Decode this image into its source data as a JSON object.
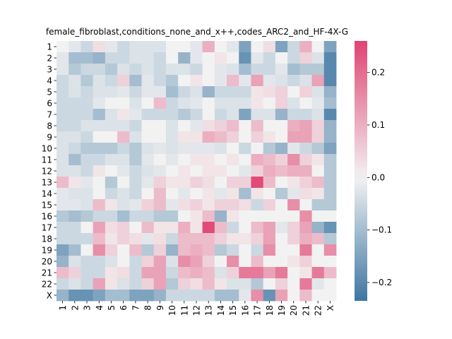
{
  "chart_data": {
    "type": "heatmap",
    "title": "female_fibroblast,conditions_none_and_x++,codes_ARC2_and_HF-4X-G",
    "xlabel": "",
    "ylabel": "",
    "row_labels": [
      "1",
      "2",
      "3",
      "4",
      "5",
      "6",
      "7",
      "8",
      "9",
      "10",
      "11",
      "12",
      "13",
      "14",
      "15",
      "16",
      "17",
      "18",
      "19",
      "20",
      "21",
      "22",
      "X"
    ],
    "col_labels": [
      "1",
      "2",
      "3",
      "4",
      "5",
      "6",
      "7",
      "8",
      "9",
      "10",
      "11",
      "12",
      "13",
      "14",
      "15",
      "16",
      "17",
      "18",
      "19",
      "20",
      "21",
      "22",
      "X"
    ],
    "colorbar": {
      "vmin": -0.235,
      "vmax": 0.26,
      "ticks": [
        -0.2,
        -0.1,
        0.0,
        0.1,
        0.2
      ],
      "tick_labels": [
        "−0.2",
        "−0.1",
        "0.0",
        "0.1",
        "0.2"
      ],
      "colormap": "diverging blue-white-pink",
      "color_low": "#3d76a1",
      "color_mid": "#f2f2f2",
      "color_high": "#df4473"
    },
    "values": [
      [
        0.0,
        -0.02,
        -0.05,
        0.03,
        -0.02,
        -0.05,
        -0.03,
        -0.03,
        -0.03,
        0.0,
        0.0,
        -0.02,
        0.1,
        0.0,
        -0.02,
        -0.15,
        0.0,
        0.03,
        -0.15,
        -0.05,
        0.1,
        0.0,
        -0.15
      ],
      [
        -0.02,
        -0.1,
        -0.1,
        -0.12,
        -0.05,
        -0.05,
        -0.03,
        -0.03,
        -0.05,
        0.0,
        -0.12,
        -0.02,
        0.0,
        0.02,
        0.0,
        -0.18,
        -0.02,
        -0.05,
        0.0,
        -0.05,
        0.05,
        -0.03,
        -0.2
      ],
      [
        -0.02,
        -0.08,
        -0.05,
        -0.05,
        -0.08,
        -0.03,
        -0.05,
        -0.03,
        -0.05,
        -0.03,
        -0.03,
        -0.05,
        0.0,
        -0.02,
        -0.03,
        -0.1,
        -0.05,
        -0.05,
        -0.02,
        -0.1,
        -0.08,
        -0.08,
        -0.2
      ],
      [
        -0.05,
        -0.03,
        -0.08,
        -0.03,
        -0.05,
        0.05,
        -0.1,
        -0.02,
        -0.05,
        -0.08,
        0.0,
        0.02,
        0.0,
        -0.02,
        0.08,
        -0.02,
        0.12,
        -0.02,
        -0.03,
        -0.05,
        -0.03,
        0.12,
        -0.2
      ],
      [
        -0.05,
        -0.03,
        -0.05,
        -0.03,
        -0.03,
        -0.02,
        -0.05,
        -0.02,
        -0.02,
        -0.1,
        -0.05,
        -0.03,
        -0.12,
        -0.05,
        -0.05,
        -0.05,
        0.02,
        0.03,
        0.05,
        0.0,
        0.05,
        -0.03,
        -0.12
      ],
      [
        -0.05,
        -0.05,
        -0.05,
        -0.02,
        0.0,
        0.0,
        -0.03,
        0.0,
        0.08,
        -0.05,
        -0.03,
        -0.02,
        0.0,
        -0.03,
        -0.03,
        -0.03,
        0.02,
        0.0,
        0.05,
        -0.03,
        0.0,
        -0.02,
        -0.1
      ],
      [
        -0.05,
        -0.05,
        -0.05,
        -0.1,
        -0.03,
        0.02,
        -0.02,
        -0.05,
        -0.05,
        -0.05,
        -0.08,
        -0.05,
        0.0,
        -0.05,
        -0.03,
        -0.15,
        -0.03,
        -0.03,
        -0.12,
        -0.05,
        -0.05,
        -0.03,
        -0.2
      ],
      [
        -0.05,
        -0.05,
        -0.03,
        -0.03,
        -0.03,
        -0.03,
        -0.05,
        0.0,
        0.0,
        -0.03,
        0.0,
        -0.02,
        0.03,
        0.05,
        0.08,
        0.0,
        0.08,
        0.0,
        0.0,
        0.1,
        0.12,
        0.05,
        -0.12
      ],
      [
        -0.03,
        -0.03,
        -0.05,
        0.0,
        0.0,
        0.08,
        -0.03,
        0.0,
        0.0,
        -0.03,
        0.02,
        0.02,
        0.1,
        0.08,
        0.05,
        0.0,
        0.05,
        0.02,
        0.0,
        0.12,
        0.12,
        0.05,
        -0.12
      ],
      [
        -0.03,
        -0.05,
        -0.08,
        -0.08,
        -0.08,
        -0.05,
        -0.08,
        -0.03,
        -0.02,
        -0.03,
        -0.02,
        -0.02,
        -0.02,
        -0.03,
        0.0,
        -0.05,
        0.0,
        -0.08,
        -0.12,
        -0.02,
        -0.05,
        -0.08,
        -0.15
      ],
      [
        -0.03,
        -0.1,
        -0.05,
        -0.05,
        -0.03,
        -0.03,
        -0.08,
        -0.02,
        0.0,
        -0.02,
        0.0,
        0.02,
        0.02,
        0.0,
        0.02,
        0.0,
        0.1,
        0.08,
        0.05,
        0.15,
        0.05,
        0.02,
        -0.08
      ],
      [
        -0.03,
        -0.03,
        -0.05,
        0.02,
        0.0,
        -0.02,
        -0.05,
        -0.03,
        -0.02,
        0.0,
        0.02,
        0.0,
        0.02,
        0.02,
        0.0,
        -0.02,
        0.05,
        0.1,
        0.08,
        0.1,
        0.1,
        0.0,
        -0.08
      ],
      [
        0.08,
        0.02,
        -0.02,
        0.0,
        -0.08,
        0.0,
        -0.05,
        -0.02,
        0.05,
        0.02,
        0.02,
        0.05,
        0.03,
        0.0,
        0.05,
        0.05,
        0.25,
        0.08,
        0.0,
        0.02,
        0.05,
        0.08,
        -0.08
      ],
      [
        -0.02,
        -0.03,
        -0.03,
        0.0,
        -0.05,
        -0.03,
        -0.05,
        0.0,
        0.08,
        0.0,
        -0.02,
        0.0,
        0.02,
        -0.02,
        0.02,
        -0.1,
        0.02,
        0.0,
        -0.08,
        -0.02,
        0.03,
        0.02,
        -0.08
      ],
      [
        -0.02,
        -0.02,
        -0.03,
        0.08,
        0.02,
        -0.03,
        -0.02,
        0.05,
        0.08,
        -0.02,
        0.03,
        0.05,
        0.02,
        0.05,
        0.05,
        0.03,
        -0.05,
        0.05,
        0.0,
        0.15,
        0.0,
        -0.08,
        -0.08
      ],
      [
        -0.08,
        -0.1,
        -0.08,
        -0.05,
        -0.05,
        -0.1,
        -0.05,
        -0.05,
        -0.08,
        -0.08,
        0.0,
        0.02,
        0.08,
        -0.12,
        0.02,
        0.0,
        0.0,
        0.0,
        0.0,
        0.0,
        0.15,
        0.0,
        0.0
      ],
      [
        -0.05,
        -0.05,
        0.0,
        0.12,
        0.03,
        0.05,
        0.0,
        0.08,
        0.02,
        0.02,
        0.1,
        0.02,
        0.25,
        0.08,
        -0.05,
        0.0,
        0.08,
        0.12,
        -0.02,
        0.05,
        0.12,
        -0.12,
        -0.18
      ],
      [
        -0.05,
        -0.05,
        -0.05,
        0.08,
        0.02,
        0.05,
        0.03,
        -0.02,
        0.03,
        -0.05,
        0.08,
        0.08,
        0.08,
        0.05,
        0.02,
        0.02,
        0.05,
        0.12,
        0.0,
        0.05,
        0.1,
        0.08,
        -0.08
      ],
      [
        -0.15,
        -0.1,
        0.0,
        0.15,
        0.05,
        0.0,
        0.08,
        -0.08,
        0.05,
        -0.12,
        0.08,
        0.1,
        0.08,
        -0.08,
        -0.05,
        0.0,
        -0.05,
        0.15,
        0.0,
        0.0,
        0.18,
        0.0,
        0.15
      ],
      [
        -0.12,
        -0.03,
        -0.05,
        -0.05,
        -0.03,
        0.0,
        -0.05,
        0.05,
        0.12,
        -0.03,
        0.15,
        0.12,
        0.05,
        0.0,
        0.15,
        0.0,
        0.08,
        0.0,
        0.0,
        0.02,
        0.05,
        0.0,
        0.0
      ],
      [
        0.08,
        0.05,
        -0.05,
        -0.05,
        0.02,
        0.03,
        -0.05,
        0.12,
        0.12,
        -0.05,
        0.08,
        0.1,
        0.08,
        -0.03,
        0.05,
        0.18,
        0.18,
        0.12,
        0.18,
        0.0,
        0.02,
        0.18,
        0.08
      ],
      [
        -0.05,
        -0.03,
        -0.05,
        0.12,
        0.02,
        -0.03,
        -0.05,
        0.05,
        0.12,
        -0.08,
        0.05,
        0.03,
        0.08,
        0.02,
        -0.03,
        -0.03,
        -0.08,
        0.0,
        0.05,
        0.0,
        0.18,
        -0.02,
        0.0
      ],
      [
        -0.12,
        -0.18,
        -0.18,
        -0.15,
        -0.1,
        -0.1,
        -0.15,
        -0.15,
        -0.12,
        -0.05,
        -0.05,
        -0.05,
        -0.05,
        -0.1,
        -0.1,
        -0.02,
        0.15,
        -0.18,
        0.12,
        0.0,
        0.08,
        0.0,
        0.0
      ]
    ]
  }
}
